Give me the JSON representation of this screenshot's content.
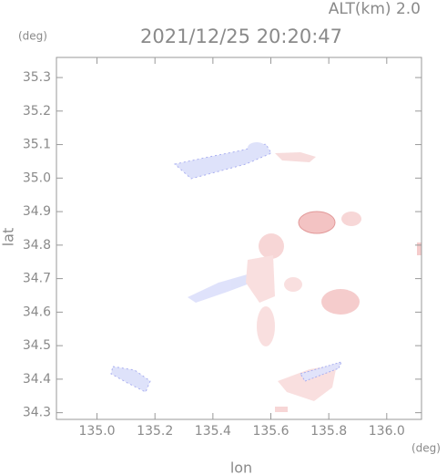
{
  "chart_data": {
    "type": "map",
    "title": "2021/12/25 20:20:47",
    "subtitle": "ALT(km) 2.0",
    "y_unit": "(deg)",
    "x_unit": "(deg)",
    "x_label": "lon",
    "y_label": "lat",
    "xlim": [
      134.86,
      136.12
    ],
    "ylim": [
      34.28,
      35.36
    ],
    "xticks": [
      {
        "value": 135,
        "label": "135.0"
      },
      135.2,
      135.4,
      135.6,
      135.8,
      {
        "value": 136,
        "label": "136.0"
      }
    ],
    "yticks": [
      34.3,
      34.4,
      34.5,
      34.6,
      34.7,
      34.8,
      34.9,
      {
        "value": 35,
        "label": "35.0"
      },
      35.1,
      35.2,
      35.3
    ]
  }
}
